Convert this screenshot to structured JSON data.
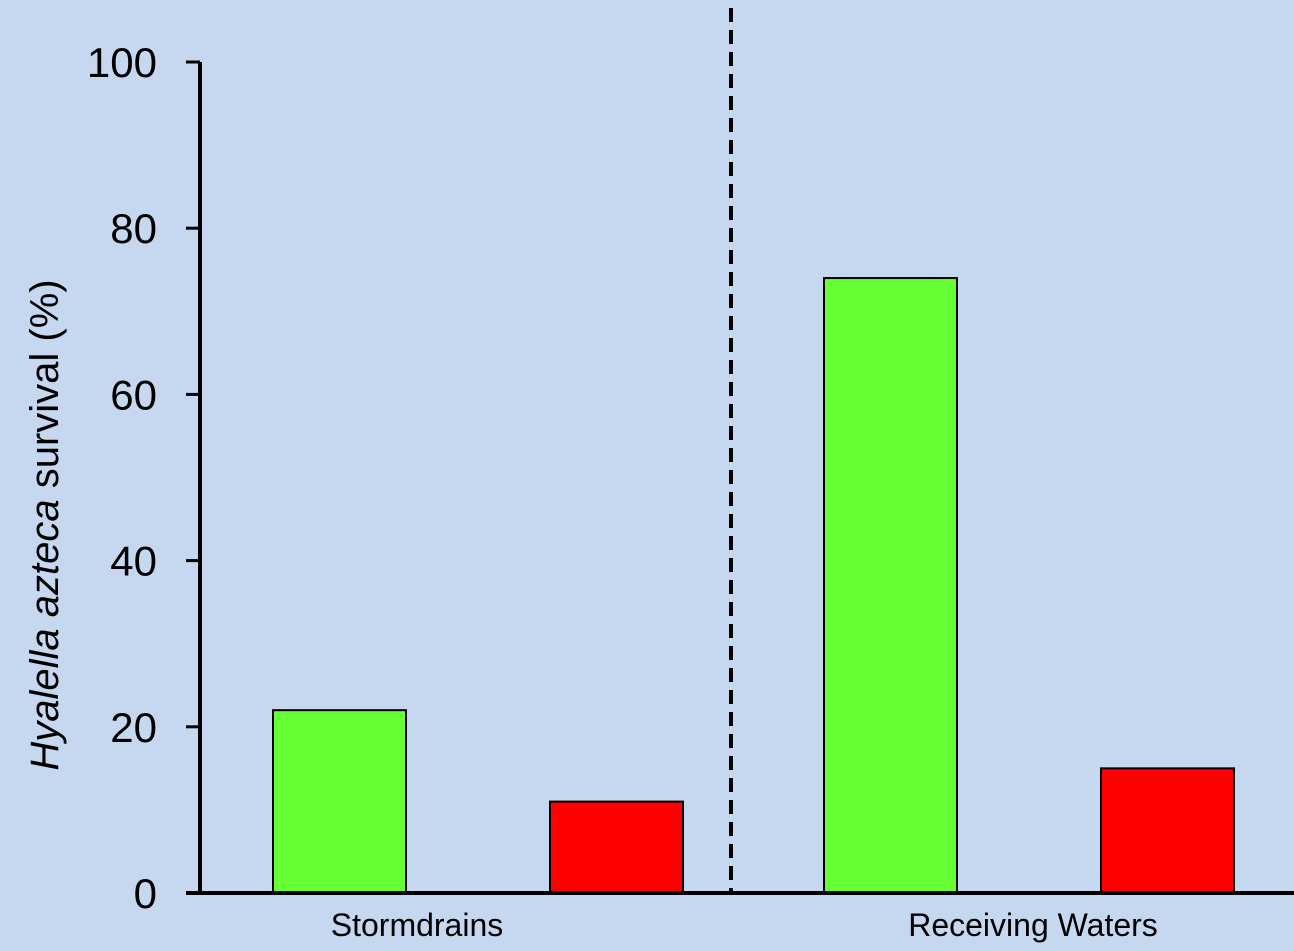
{
  "chart_data": {
    "type": "bar",
    "ylabel_italic": "Hyalella azteca",
    "ylabel_rest": " survival (%)",
    "ylim": [
      0,
      100
    ],
    "yticks": [
      0,
      20,
      40,
      60,
      80,
      100
    ],
    "groups": [
      {
        "label": "Stormdrains",
        "values": [
          22,
          11
        ]
      },
      {
        "label": "Receiving Waters",
        "values": [
          74,
          15
        ]
      }
    ],
    "series_colors": [
      "#66ff33",
      "#ff0000"
    ],
    "divider": "dashed",
    "grid": false,
    "legend": "none"
  }
}
